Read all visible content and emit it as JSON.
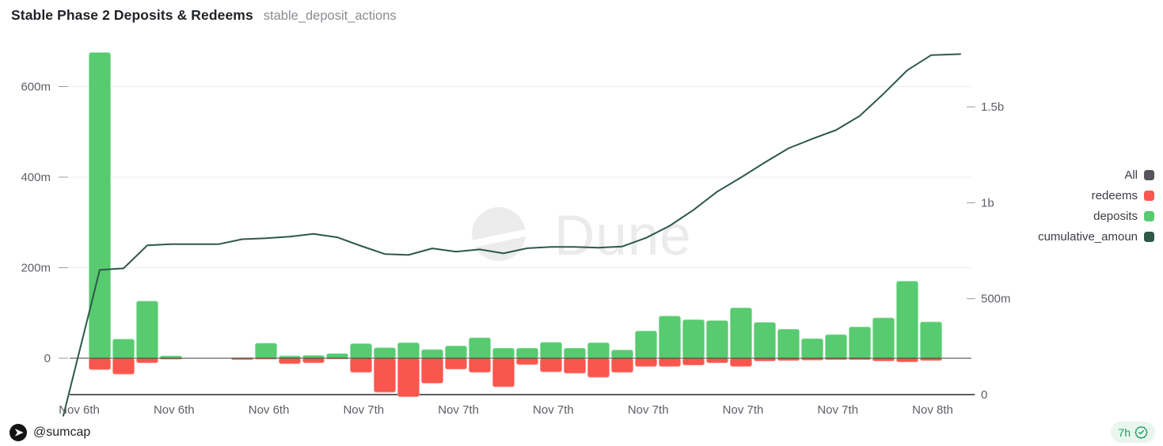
{
  "header": {
    "title": "Stable Phase 2 Deposits & Redeems",
    "query_name": "stable_deposit_actions"
  },
  "watermark": {
    "text": "Dune"
  },
  "legend": {
    "items": [
      {
        "label": "All",
        "color": "#55565b"
      },
      {
        "label": "redeems",
        "color": "#f9564e"
      },
      {
        "label": "deposits",
        "color": "#58ca70"
      },
      {
        "label": "cumulative_amoun",
        "color": "#2d5946"
      }
    ]
  },
  "footer": {
    "author_handle": "@sumcap",
    "updated_ago": "7h"
  },
  "chart_data": {
    "type": "bar",
    "title": "Stable Phase 2 Deposits & Redeems",
    "unit": "USD (m = millions, b = billions)",
    "grid": true,
    "legend_position": "right",
    "x_tick_labels": [
      "Nov 6th",
      "Nov 6th",
      "Nov 6th",
      "Nov 7th",
      "Nov 7th",
      "Nov 7th",
      "Nov 7th",
      "Nov 7th",
      "Nov 7th",
      "Nov 8th"
    ],
    "left_axis": {
      "ticks": [
        {
          "label": "0",
          "value": 0
        },
        {
          "label": "200m",
          "value": 200
        },
        {
          "label": "400m",
          "value": 400
        },
        {
          "label": "600m",
          "value": 600
        }
      ],
      "range_m": [
        -80,
        685
      ]
    },
    "right_axis": {
      "ticks": [
        {
          "label": "0",
          "value": 0
        },
        {
          "label": "500m",
          "value": 500
        },
        {
          "label": "1b",
          "value": 1000
        },
        {
          "label": "1.5b",
          "value": 1500
        }
      ],
      "range_m": [
        0,
        1800
      ]
    },
    "series": [
      {
        "name": "deposits",
        "type": "bar",
        "axis": "left",
        "color": "#58ca70",
        "edge": "#8fe0a1",
        "values_m": [
          675,
          42,
          126,
          5,
          0,
          0,
          1,
          33,
          5,
          6,
          10,
          32,
          23,
          34,
          19,
          27,
          45,
          22,
          22,
          35,
          22,
          34,
          18,
          60,
          93,
          85,
          83,
          111,
          79,
          64,
          43,
          52,
          69,
          89,
          170,
          80
        ]
      },
      {
        "name": "redeems",
        "type": "bar",
        "axis": "left",
        "color": "#f9564e",
        "edge": "#fb918b",
        "values_m": [
          -25,
          -35,
          -10,
          -2,
          0,
          0,
          -3,
          -2,
          -12,
          -10,
          -1,
          -31,
          -75,
          -85,
          -55,
          -24,
          -31,
          -63,
          -14,
          -30,
          -33,
          -42,
          -31,
          -18,
          -18,
          -15,
          -10,
          -18,
          -6,
          -5,
          -4,
          -3,
          -3,
          -6,
          -8,
          -5
        ]
      },
      {
        "name": "cumulative_amount",
        "type": "line",
        "axis": "right",
        "color": "#2d5946",
        "start_value_m": -110,
        "values_m": [
          650,
          658,
          778,
          784,
          784,
          784,
          810,
          815,
          823,
          838,
          820,
          775,
          733,
          728,
          762,
          745,
          757,
          736,
          763,
          770,
          770,
          766,
          772,
          817,
          880,
          963,
          1058,
          1132,
          1210,
          1284,
          1333,
          1379,
          1453,
          1568,
          1691,
          1769
        ],
        "end_value_m": 1775
      }
    ]
  }
}
